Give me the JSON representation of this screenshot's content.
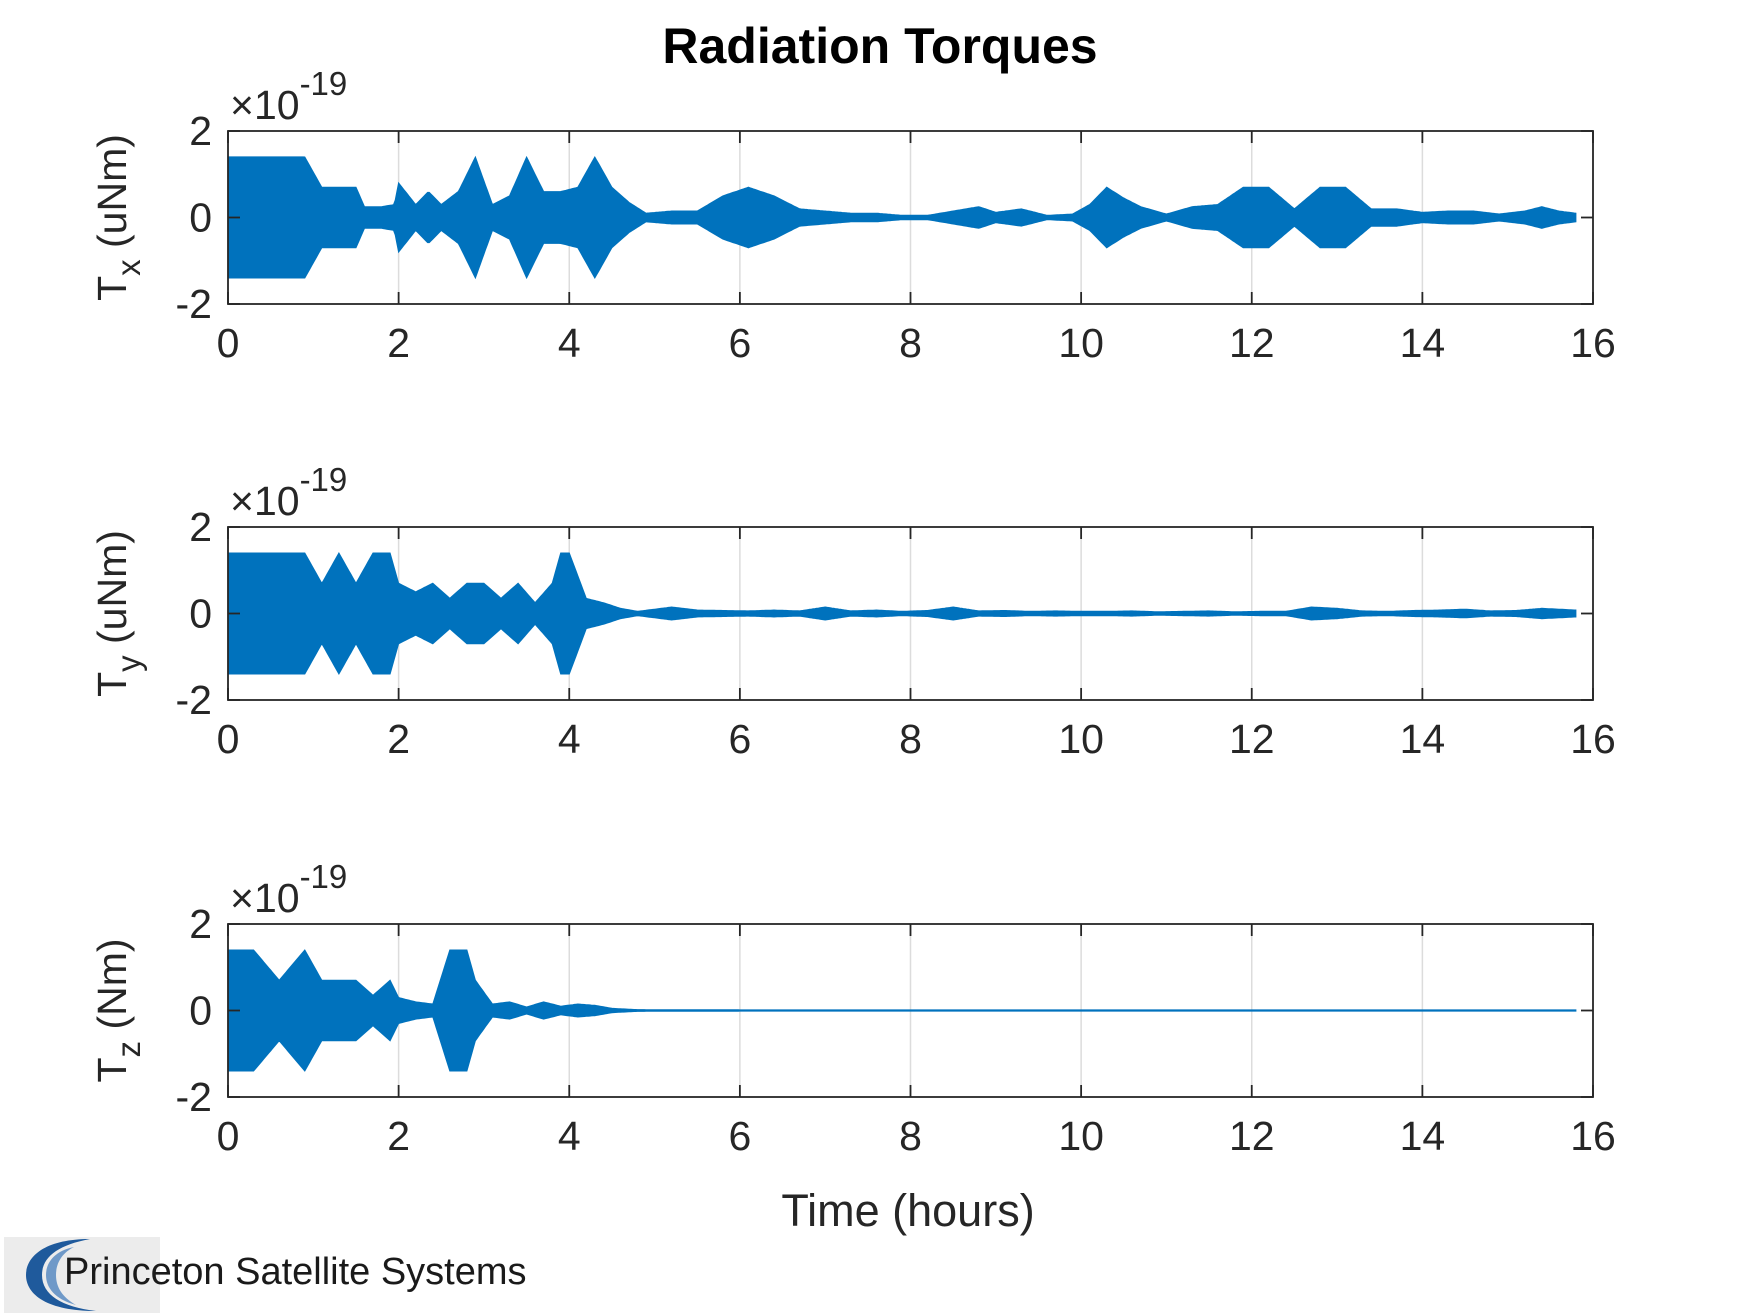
{
  "chart_data": {
    "type": "line",
    "title": "Radiation Torques",
    "xlabel": "Time (hours)",
    "xlim": [
      0,
      16
    ],
    "xticks": [
      "0",
      "2",
      "4",
      "6",
      "8",
      "10",
      "12",
      "14",
      "16"
    ],
    "grid": "vertical",
    "series_color": "#0072BD",
    "subplots": [
      {
        "ylabel_main": "T",
        "ylabel_sub": "x",
        "ylabel_unit": " (uNm)",
        "exponent_base": "×10",
        "exponent_power": "-19",
        "ylim": [
          -2,
          2
        ],
        "yticks": [
          "2",
          "0",
          "-2"
        ],
        "envelope": [
          [
            0.0,
            1.4
          ],
          [
            0.3,
            1.4
          ],
          [
            0.6,
            1.4
          ],
          [
            0.9,
            1.4
          ],
          [
            1.1,
            0.7
          ],
          [
            1.3,
            0.7
          ],
          [
            1.5,
            0.7
          ],
          [
            1.6,
            0.25
          ],
          [
            1.8,
            0.25
          ],
          [
            1.95,
            0.3
          ],
          [
            2.0,
            0.8
          ],
          [
            2.2,
            0.3
          ],
          [
            2.35,
            0.6
          ],
          [
            2.5,
            0.3
          ],
          [
            2.7,
            0.6
          ],
          [
            2.9,
            1.4
          ],
          [
            3.1,
            0.3
          ],
          [
            3.3,
            0.5
          ],
          [
            3.5,
            1.4
          ],
          [
            3.7,
            0.6
          ],
          [
            3.9,
            0.6
          ],
          [
            4.1,
            0.7
          ],
          [
            4.3,
            1.4
          ],
          [
            4.5,
            0.7
          ],
          [
            4.7,
            0.35
          ],
          [
            4.9,
            0.1
          ],
          [
            5.2,
            0.15
          ],
          [
            5.5,
            0.15
          ],
          [
            5.8,
            0.5
          ],
          [
            6.1,
            0.7
          ],
          [
            6.4,
            0.5
          ],
          [
            6.7,
            0.2
          ],
          [
            7.0,
            0.15
          ],
          [
            7.3,
            0.1
          ],
          [
            7.6,
            0.1
          ],
          [
            7.9,
            0.05
          ],
          [
            8.2,
            0.05
          ],
          [
            8.5,
            0.15
          ],
          [
            8.8,
            0.25
          ],
          [
            9.0,
            0.12
          ],
          [
            9.3,
            0.2
          ],
          [
            9.6,
            0.05
          ],
          [
            9.9,
            0.08
          ],
          [
            10.1,
            0.3
          ],
          [
            10.3,
            0.7
          ],
          [
            10.5,
            0.45
          ],
          [
            10.7,
            0.25
          ],
          [
            11.0,
            0.08
          ],
          [
            11.3,
            0.25
          ],
          [
            11.6,
            0.3
          ],
          [
            11.9,
            0.7
          ],
          [
            12.2,
            0.7
          ],
          [
            12.5,
            0.2
          ],
          [
            12.8,
            0.7
          ],
          [
            13.1,
            0.7
          ],
          [
            13.4,
            0.2
          ],
          [
            13.7,
            0.2
          ],
          [
            14.0,
            0.12
          ],
          [
            14.3,
            0.15
          ],
          [
            14.6,
            0.15
          ],
          [
            14.9,
            0.08
          ],
          [
            15.2,
            0.15
          ],
          [
            15.4,
            0.25
          ],
          [
            15.6,
            0.15
          ],
          [
            15.8,
            0.1
          ]
        ]
      },
      {
        "ylabel_main": "T",
        "ylabel_sub": "y",
        "ylabel_unit": " (uNm)",
        "exponent_base": "×10",
        "exponent_power": "-19",
        "ylim": [
          -2,
          2
        ],
        "yticks": [
          "2",
          "0",
          "-2"
        ],
        "envelope": [
          [
            0.0,
            1.4
          ],
          [
            0.3,
            1.4
          ],
          [
            0.6,
            1.4
          ],
          [
            0.9,
            1.4
          ],
          [
            1.1,
            0.7
          ],
          [
            1.3,
            1.4
          ],
          [
            1.5,
            0.7
          ],
          [
            1.7,
            1.4
          ],
          [
            1.9,
            1.4
          ],
          [
            2.0,
            0.7
          ],
          [
            2.2,
            0.5
          ],
          [
            2.4,
            0.7
          ],
          [
            2.6,
            0.35
          ],
          [
            2.8,
            0.7
          ],
          [
            3.0,
            0.7
          ],
          [
            3.2,
            0.35
          ],
          [
            3.4,
            0.7
          ],
          [
            3.6,
            0.25
          ],
          [
            3.8,
            0.7
          ],
          [
            3.9,
            1.4
          ],
          [
            4.0,
            1.4
          ],
          [
            4.2,
            0.35
          ],
          [
            4.4,
            0.25
          ],
          [
            4.6,
            0.12
          ],
          [
            4.8,
            0.05
          ],
          [
            5.2,
            0.15
          ],
          [
            5.5,
            0.08
          ],
          [
            5.8,
            0.07
          ],
          [
            6.1,
            0.06
          ],
          [
            6.4,
            0.08
          ],
          [
            6.7,
            0.06
          ],
          [
            7.0,
            0.15
          ],
          [
            7.3,
            0.06
          ],
          [
            7.6,
            0.08
          ],
          [
            7.9,
            0.05
          ],
          [
            8.2,
            0.07
          ],
          [
            8.5,
            0.15
          ],
          [
            8.8,
            0.06
          ],
          [
            9.1,
            0.07
          ],
          [
            9.4,
            0.05
          ],
          [
            9.7,
            0.06
          ],
          [
            10.0,
            0.05
          ],
          [
            10.3,
            0.05
          ],
          [
            10.6,
            0.06
          ],
          [
            10.9,
            0.04
          ],
          [
            11.2,
            0.05
          ],
          [
            11.5,
            0.06
          ],
          [
            11.8,
            0.04
          ],
          [
            12.1,
            0.05
          ],
          [
            12.4,
            0.05
          ],
          [
            12.7,
            0.15
          ],
          [
            13.0,
            0.12
          ],
          [
            13.3,
            0.06
          ],
          [
            13.6,
            0.05
          ],
          [
            13.9,
            0.07
          ],
          [
            14.2,
            0.08
          ],
          [
            14.5,
            0.1
          ],
          [
            14.8,
            0.06
          ],
          [
            15.1,
            0.07
          ],
          [
            15.4,
            0.12
          ],
          [
            15.6,
            0.1
          ],
          [
            15.8,
            0.08
          ]
        ]
      },
      {
        "ylabel_main": "T",
        "ylabel_sub": "z",
        "ylabel_unit": " (Nm)",
        "exponent_base": "×10",
        "exponent_power": "-19",
        "ylim": [
          -2,
          2
        ],
        "yticks": [
          "2",
          "0",
          "-2"
        ],
        "envelope": [
          [
            0.0,
            1.4
          ],
          [
            0.3,
            1.4
          ],
          [
            0.6,
            0.7
          ],
          [
            0.9,
            1.4
          ],
          [
            1.1,
            0.7
          ],
          [
            1.3,
            0.7
          ],
          [
            1.5,
            0.7
          ],
          [
            1.7,
            0.35
          ],
          [
            1.9,
            0.7
          ],
          [
            2.0,
            0.3
          ],
          [
            2.2,
            0.2
          ],
          [
            2.4,
            0.15
          ],
          [
            2.6,
            1.4
          ],
          [
            2.8,
            1.4
          ],
          [
            2.9,
            0.7
          ],
          [
            3.1,
            0.15
          ],
          [
            3.3,
            0.2
          ],
          [
            3.5,
            0.08
          ],
          [
            3.7,
            0.2
          ],
          [
            3.9,
            0.1
          ],
          [
            4.1,
            0.15
          ],
          [
            4.3,
            0.12
          ],
          [
            4.5,
            0.05
          ],
          [
            4.8,
            0.02
          ],
          [
            6.0,
            0.015
          ],
          [
            8.0,
            0.015
          ],
          [
            10.0,
            0.015
          ],
          [
            12.0,
            0.015
          ],
          [
            14.0,
            0.015
          ],
          [
            15.8,
            0.015
          ]
        ]
      }
    ]
  },
  "logo": {
    "text": "Princeton Satellite Systems"
  }
}
